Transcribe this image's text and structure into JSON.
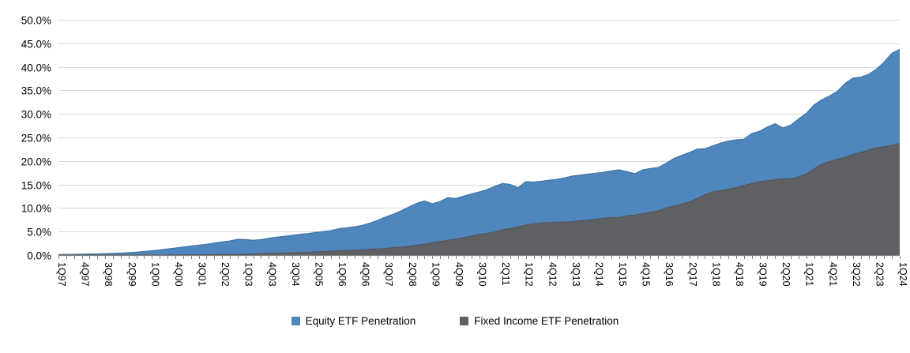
{
  "chart": {
    "background": "#ffffff",
    "gridline_color": "#d9d9d9",
    "axis_line_color": "#808080",
    "tick_color": "#808080",
    "y_axis": {
      "min": 0,
      "max": 50,
      "step": 5,
      "tick_labels": [
        "0.0%",
        "5.0%",
        "10.0%",
        "15.0%",
        "20.0%",
        "25.0%",
        "30.0%",
        "35.0%",
        "40.0%",
        "45.0%",
        "50.0%"
      ]
    },
    "x_axis": {
      "label_every_n_quarters": 3,
      "visible_tick_labels": [
        "1Q97",
        "4Q97",
        "3Q98",
        "2Q99",
        "1Q00",
        "4Q00",
        "3Q01",
        "2Q02",
        "1Q03",
        "4Q03",
        "3Q04",
        "2Q05",
        "1Q06",
        "4Q06",
        "3Q07",
        "2Q08",
        "1Q09",
        "4Q09",
        "3Q10",
        "2Q11",
        "1Q12",
        "4Q12",
        "3Q13",
        "2Q14",
        "1Q15",
        "4Q15",
        "3Q16",
        "2Q17",
        "1Q18",
        "4Q18",
        "3Q19",
        "2Q20",
        "1Q21",
        "4Q21",
        "3Q22",
        "2Q23",
        "1Q24"
      ]
    },
    "legend": [
      {
        "label": "Equity ETF Penetration",
        "color": "#4e86bd"
      },
      {
        "label": "Fixed Income ETF Penetration",
        "color": "#5e6063"
      }
    ]
  },
  "chart_data": {
    "type": "area",
    "mode": "overlapping",
    "title": "",
    "xlabel": "",
    "ylabel": "",
    "ylim": [
      0,
      50
    ],
    "grid": true,
    "legend_position": "bottom",
    "x": [
      "1Q97",
      "2Q97",
      "3Q97",
      "4Q97",
      "1Q98",
      "2Q98",
      "3Q98",
      "4Q98",
      "1Q99",
      "2Q99",
      "3Q99",
      "4Q99",
      "1Q00",
      "2Q00",
      "3Q00",
      "4Q00",
      "1Q01",
      "2Q01",
      "3Q01",
      "4Q01",
      "1Q02",
      "2Q02",
      "3Q02",
      "4Q02",
      "1Q03",
      "2Q03",
      "3Q03",
      "4Q03",
      "1Q04",
      "2Q04",
      "3Q04",
      "4Q04",
      "1Q05",
      "2Q05",
      "3Q05",
      "4Q05",
      "1Q06",
      "2Q06",
      "3Q06",
      "4Q06",
      "1Q07",
      "2Q07",
      "3Q07",
      "4Q07",
      "1Q08",
      "2Q08",
      "3Q08",
      "4Q08",
      "1Q09",
      "2Q09",
      "3Q09",
      "4Q09",
      "1Q10",
      "2Q10",
      "3Q10",
      "4Q10",
      "1Q11",
      "2Q11",
      "3Q11",
      "4Q11",
      "1Q12",
      "2Q12",
      "3Q12",
      "4Q12",
      "1Q13",
      "2Q13",
      "3Q13",
      "4Q13",
      "1Q14",
      "2Q14",
      "3Q14",
      "4Q14",
      "1Q15",
      "2Q15",
      "3Q15",
      "4Q15",
      "1Q16",
      "2Q16",
      "3Q16",
      "4Q16",
      "1Q17",
      "2Q17",
      "3Q17",
      "4Q17",
      "1Q18",
      "2Q18",
      "3Q18",
      "4Q18",
      "1Q19",
      "2Q19",
      "3Q19",
      "4Q19",
      "1Q20",
      "2Q20",
      "3Q20",
      "4Q20",
      "1Q21",
      "2Q21",
      "3Q21",
      "4Q21",
      "1Q22",
      "2Q22",
      "3Q22",
      "4Q22",
      "1Q23",
      "2Q23",
      "3Q23",
      "4Q23",
      "1Q24"
    ],
    "series": [
      {
        "name": "Equity ETF Penetration",
        "color": "#4e86bd",
        "edge_color": "#3f74a3",
        "values": [
          0.1,
          0.13,
          0.16,
          0.2,
          0.23,
          0.26,
          0.3,
          0.37,
          0.43,
          0.5,
          0.62,
          0.75,
          0.9,
          1.1,
          1.3,
          1.5,
          1.7,
          1.9,
          2.1,
          2.3,
          2.55,
          2.8,
          3.0,
          3.35,
          3.3,
          3.15,
          3.3,
          3.6,
          3.8,
          4.0,
          4.2,
          4.4,
          4.55,
          4.8,
          5.0,
          5.2,
          5.6,
          5.8,
          6.0,
          6.3,
          6.8,
          7.4,
          8.1,
          8.7,
          9.4,
          10.2,
          11.0,
          11.5,
          10.9,
          11.4,
          12.2,
          12.0,
          12.5,
          13.0,
          13.4,
          13.9,
          14.6,
          15.2,
          15.0,
          14.3,
          15.6,
          15.5,
          15.7,
          15.9,
          16.1,
          16.4,
          16.8,
          17.0,
          17.2,
          17.4,
          17.6,
          17.9,
          18.1,
          17.7,
          17.3,
          18.1,
          18.4,
          18.6,
          19.5,
          20.5,
          21.2,
          21.8,
          22.5,
          22.6,
          23.2,
          23.8,
          24.2,
          24.5,
          24.6,
          25.8,
          26.3,
          27.2,
          27.9,
          27.0,
          27.6,
          28.9,
          30.1,
          31.9,
          33.0,
          33.8,
          34.8,
          36.5,
          37.6,
          37.8,
          38.4,
          39.5,
          41.0,
          42.9,
          43.7
        ]
      },
      {
        "name": "Fixed Income ETF Penetration",
        "color": "#5e6063",
        "edge_color": "#54565a",
        "values": [
          0,
          0,
          0,
          0,
          0,
          0,
          0,
          0,
          0,
          0,
          0,
          0,
          0,
          0,
          0.02,
          0.03,
          0.04,
          0.05,
          0.05,
          0.06,
          0.08,
          0.1,
          0.1,
          0.12,
          0.15,
          0.2,
          0.3,
          0.4,
          0.4,
          0.45,
          0.5,
          0.55,
          0.6,
          0.7,
          0.75,
          0.8,
          0.9,
          0.95,
          1.0,
          1.1,
          1.2,
          1.3,
          1.4,
          1.6,
          1.7,
          1.9,
          2.1,
          2.3,
          2.6,
          2.9,
          3.1,
          3.4,
          3.7,
          4.0,
          4.4,
          4.6,
          4.9,
          5.4,
          5.6,
          6.0,
          6.4,
          6.6,
          6.8,
          6.9,
          7.0,
          7.0,
          7.1,
          7.3,
          7.4,
          7.6,
          7.8,
          8.0,
          8.0,
          8.3,
          8.5,
          8.8,
          9.1,
          9.4,
          10.0,
          10.4,
          10.8,
          11.3,
          12.0,
          12.8,
          13.4,
          13.7,
          14.0,
          14.3,
          14.8,
          15.2,
          15.6,
          15.8,
          16.0,
          16.2,
          16.2,
          16.6,
          17.2,
          18.3,
          19.3,
          19.9,
          20.3,
          20.8,
          21.4,
          21.8,
          22.3,
          22.8,
          23.0,
          23.3,
          23.7
        ]
      }
    ]
  }
}
